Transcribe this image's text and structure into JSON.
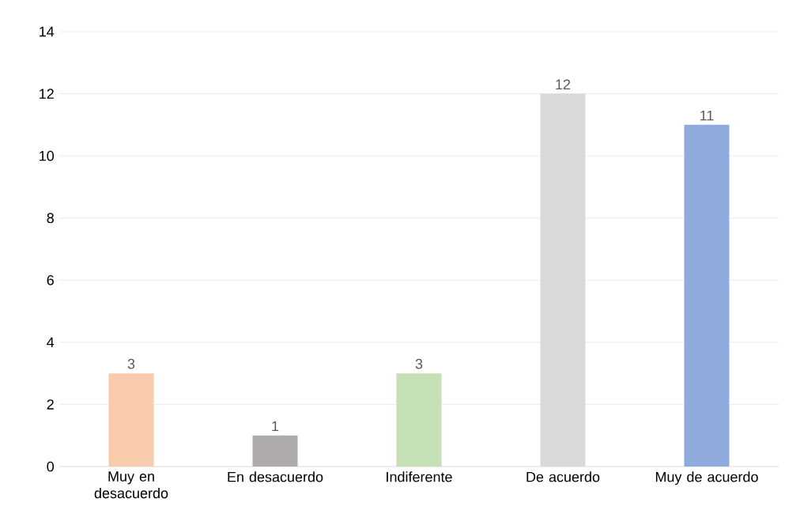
{
  "chart_data": {
    "type": "bar",
    "categories": [
      "Muy en desacuerdo",
      "En desacuerdo",
      "Indiferente",
      "De acuerdo",
      "Muy de acuerdo"
    ],
    "values": [
      3,
      1,
      3,
      12,
      11
    ],
    "colors": [
      "#f8cbad",
      "#aeaaaa",
      "#c5e0b4",
      "#d9d9d9",
      "#8faadc"
    ],
    "ylim": [
      0,
      14
    ],
    "yticks": [
      0,
      2,
      4,
      6,
      8,
      10,
      12,
      14
    ],
    "grid": "y",
    "data_labels": true
  }
}
